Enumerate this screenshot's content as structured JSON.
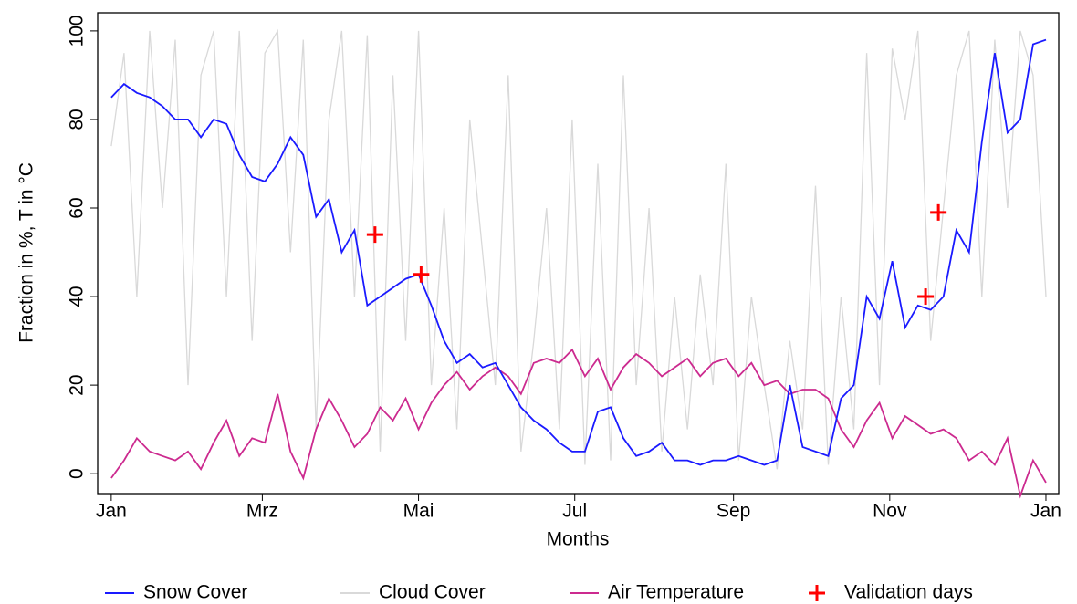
{
  "chart_data": {
    "type": "line",
    "x_label": "Months",
    "y_label": "Fraction in %,   T in °C",
    "xlim": [
      -5.3,
      370
    ],
    "ylim": [
      -4.5,
      104.1
    ],
    "xticks": [
      {
        "value": 0,
        "label": "Jan"
      },
      {
        "value": 59,
        "label": "Mrz"
      },
      {
        "value": 120,
        "label": "Mai"
      },
      {
        "value": 181,
        "label": "Jul"
      },
      {
        "value": 243,
        "label": "Sep"
      },
      {
        "value": 304,
        "label": "Nov"
      },
      {
        "value": 365,
        "label": "Jan"
      }
    ],
    "yticks": [
      0,
      20,
      40,
      60,
      80,
      100
    ],
    "x": [
      0,
      5,
      10,
      15,
      20,
      25,
      30,
      35,
      40,
      45,
      50,
      55,
      60,
      65,
      70,
      75,
      80,
      85,
      90,
      95,
      100,
      105,
      110,
      115,
      120,
      125,
      130,
      135,
      140,
      145,
      150,
      155,
      160,
      165,
      170,
      175,
      180,
      185,
      190,
      195,
      200,
      205,
      210,
      215,
      220,
      225,
      230,
      235,
      240,
      245,
      250,
      255,
      260,
      265,
      270,
      275,
      280,
      285,
      290,
      295,
      300,
      305,
      310,
      315,
      320,
      325,
      330,
      335,
      340,
      345,
      350,
      355,
      360,
      365
    ],
    "legend": "bottom",
    "series": [
      {
        "name": "Snow Cover",
        "color": "#1a1aff",
        "values": [
          85,
          88,
          86,
          85,
          83,
          80,
          80,
          76,
          80,
          79,
          72,
          67,
          66,
          70,
          76,
          72,
          58,
          62,
          50,
          55,
          38,
          40,
          42,
          44,
          45,
          38,
          30,
          25,
          27,
          24,
          25,
          20,
          15,
          12,
          10,
          7,
          5,
          5,
          14,
          15,
          8,
          4,
          5,
          7,
          3,
          3,
          2,
          3,
          3,
          4,
          3,
          2,
          3,
          20,
          6,
          5,
          4,
          17,
          20,
          40,
          35,
          48,
          33,
          38,
          37,
          40,
          55,
          50,
          75,
          95,
          77,
          80,
          97,
          98
        ]
      },
      {
        "name": "Cloud Cover",
        "color": "#d9d9d9",
        "values": [
          74,
          95,
          40,
          100,
          60,
          98,
          20,
          90,
          100,
          40,
          100,
          30,
          95,
          100,
          50,
          98,
          10,
          80,
          100,
          40,
          99,
          5,
          90,
          30,
          100,
          20,
          60,
          10,
          80,
          50,
          20,
          90,
          5,
          30,
          60,
          10,
          80,
          2,
          70,
          3,
          90,
          20,
          60,
          5,
          40,
          10,
          45,
          20,
          70,
          3,
          40,
          20,
          1,
          30,
          10,
          65,
          2,
          40,
          10,
          95,
          20,
          96,
          80,
          100,
          30,
          60,
          90,
          100,
          40,
          98,
          60,
          100,
          90,
          40
        ]
      },
      {
        "name": "Air Temperature",
        "color": "#cc2a8f",
        "values": [
          -1,
          3,
          8,
          5,
          4,
          3,
          5,
          1,
          7,
          12,
          4,
          8,
          7,
          18,
          5,
          -1,
          10,
          17,
          12,
          6,
          9,
          15,
          12,
          17,
          10,
          16,
          20,
          23,
          19,
          22,
          24,
          22,
          18,
          25,
          26,
          25,
          28,
          22,
          26,
          19,
          24,
          27,
          25,
          22,
          24,
          26,
          22,
          25,
          26,
          22,
          25,
          20,
          21,
          18,
          19,
          19,
          17,
          10,
          6,
          12,
          16,
          8,
          13,
          11,
          9,
          10,
          8,
          3,
          5,
          2,
          8,
          -5,
          3,
          -2
        ]
      },
      {
        "name": "Validation days",
        "color": "#ff0000",
        "marker": "+",
        "x": [
          103,
          121,
          318,
          323
        ],
        "values": [
          54,
          45,
          40,
          59
        ]
      }
    ]
  }
}
